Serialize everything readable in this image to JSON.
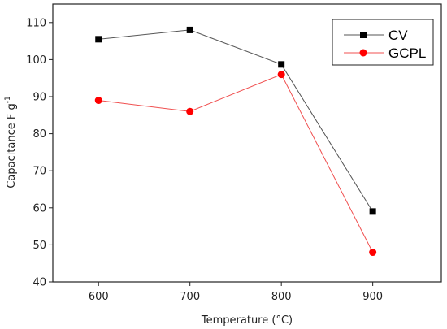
{
  "chart_data": {
    "type": "line",
    "x": [
      600,
      700,
      800,
      900
    ],
    "series": [
      {
        "name": "CV",
        "marker": "square",
        "line_color": "#555555",
        "marker_color": "#000000",
        "values": [
          105.5,
          108,
          98.7,
          59
        ]
      },
      {
        "name": "GCPL",
        "marker": "circle",
        "line_color": "#f05050",
        "marker_color": "#ff0000",
        "values": [
          89,
          86,
          96,
          48
        ]
      }
    ],
    "xlabel": "Temperature (°C)",
    "ylabel_main": "Capacitance F g",
    "ylabel_sup": "-1",
    "xlim": [
      550,
      975
    ],
    "ylim": [
      40,
      115
    ],
    "xticks": [
      600,
      700,
      800,
      900
    ],
    "yticks": [
      40,
      50,
      60,
      70,
      80,
      90,
      100,
      110
    ],
    "legend_position": "top-right",
    "grid": false
  }
}
